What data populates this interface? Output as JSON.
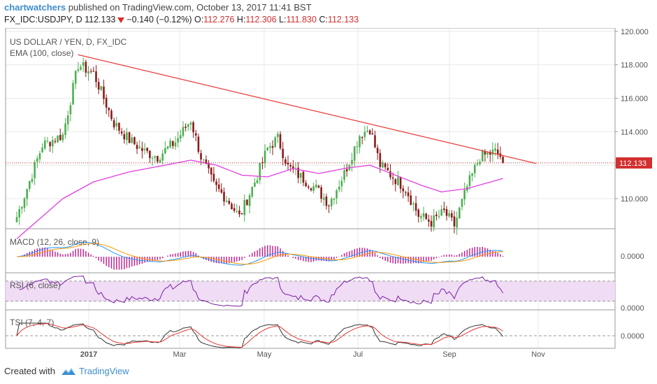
{
  "header": {
    "author": "chartwatchers",
    "published_text": "published on TradingView.com, October 13, 2017 11:41 BST",
    "symbol": "FX_IDC:USDJPY, D",
    "last": "112.133",
    "change": "−0.140 (−0.12%)",
    "open_label": "O:",
    "open": "112.276",
    "high_label": "H:",
    "high": "112.306",
    "low_label": "L:",
    "low": "111.830",
    "close_label": "C:",
    "close": "112.133"
  },
  "footer": {
    "created_with": "Created with",
    "brand": "TradingView"
  },
  "colors": {
    "up": "#4caf50",
    "down": "#8b1a1a",
    "ema": "#e040e0",
    "trendline": "#e53935",
    "price_line": "#c62828",
    "macd": "#2196f3",
    "signal": "#ff9800",
    "histogram": "#c0188c",
    "rsi": "#7b1fa2",
    "rsi_band": "#f0dcf5",
    "tsi": "#333333",
    "tsi_signal": "#e53935",
    "grid": "#e8e8e8",
    "axis_text": "#555555",
    "price_tag_bg": "#d32f2f"
  },
  "chart_data": {
    "type": "candlestick",
    "title": "US DOLLAR / YEN, D, FX_IDC",
    "indicator_label": "EMA (100, close)",
    "current_price": 112.133,
    "current_price_label": "112.133",
    "y_ticks": [
      "120.000",
      "118.000",
      "116.000",
      "114.000",
      "112.000",
      "110.000"
    ],
    "ylim": [
      108.2,
      120.2
    ],
    "x_ticks": [
      "2017",
      "Mar",
      "May",
      "Jul",
      "Sep",
      "Nov"
    ],
    "anchors": [
      [
        0,
        108.9
      ],
      [
        10,
        113.2
      ],
      [
        18,
        113.8
      ],
      [
        24,
        118.0
      ],
      [
        30,
        117.5
      ],
      [
        38,
        114.5
      ],
      [
        44,
        113.5
      ],
      [
        50,
        112.8
      ],
      [
        55,
        112.5
      ],
      [
        62,
        113.4
      ],
      [
        68,
        114.7
      ],
      [
        72,
        112.5
      ],
      [
        77,
        110.8
      ],
      [
        82,
        110.0
      ],
      [
        87,
        108.9
      ],
      [
        93,
        111.0
      ],
      [
        98,
        113.0
      ],
      [
        102,
        113.6
      ],
      [
        106,
        111.9
      ],
      [
        111,
        111.3
      ],
      [
        117,
        110.6
      ],
      [
        122,
        109.7
      ],
      [
        128,
        111.5
      ],
      [
        134,
        113.8
      ],
      [
        138,
        114.2
      ],
      [
        142,
        112.0
      ],
      [
        147,
        111.3
      ],
      [
        152,
        110.6
      ],
      [
        157,
        109.0
      ],
      [
        162,
        108.6
      ],
      [
        167,
        109.2
      ],
      [
        171,
        108.4
      ],
      [
        176,
        110.7
      ],
      [
        181,
        112.5
      ],
      [
        187,
        112.8
      ],
      [
        190,
        112.4
      ]
    ],
    "ema": [
      [
        0,
        107.6
      ],
      [
        18,
        110.0
      ],
      [
        30,
        111.0
      ],
      [
        44,
        111.6
      ],
      [
        58,
        112.0
      ],
      [
        68,
        112.3
      ],
      [
        78,
        112.0
      ],
      [
        88,
        111.4
      ],
      [
        98,
        111.3
      ],
      [
        108,
        111.8
      ],
      [
        118,
        111.5
      ],
      [
        128,
        111.8
      ],
      [
        138,
        112.0
      ],
      [
        148,
        111.4
      ],
      [
        158,
        110.8
      ],
      [
        166,
        110.4
      ],
      [
        176,
        110.6
      ],
      [
        190,
        111.2
      ]
    ],
    "trendline": [
      [
        24,
        118.6
      ],
      [
        192,
        112.5
      ]
    ],
    "macd": {
      "label": "MACD (12, 26, close, 9)",
      "zero_label": "0.0000"
    },
    "rsi": {
      "label": "RSI (6, close)",
      "zero_label": "0.0000"
    },
    "tsi": {
      "label": "TSI (7, 4, 7)",
      "zero_label": "0.0000"
    }
  }
}
